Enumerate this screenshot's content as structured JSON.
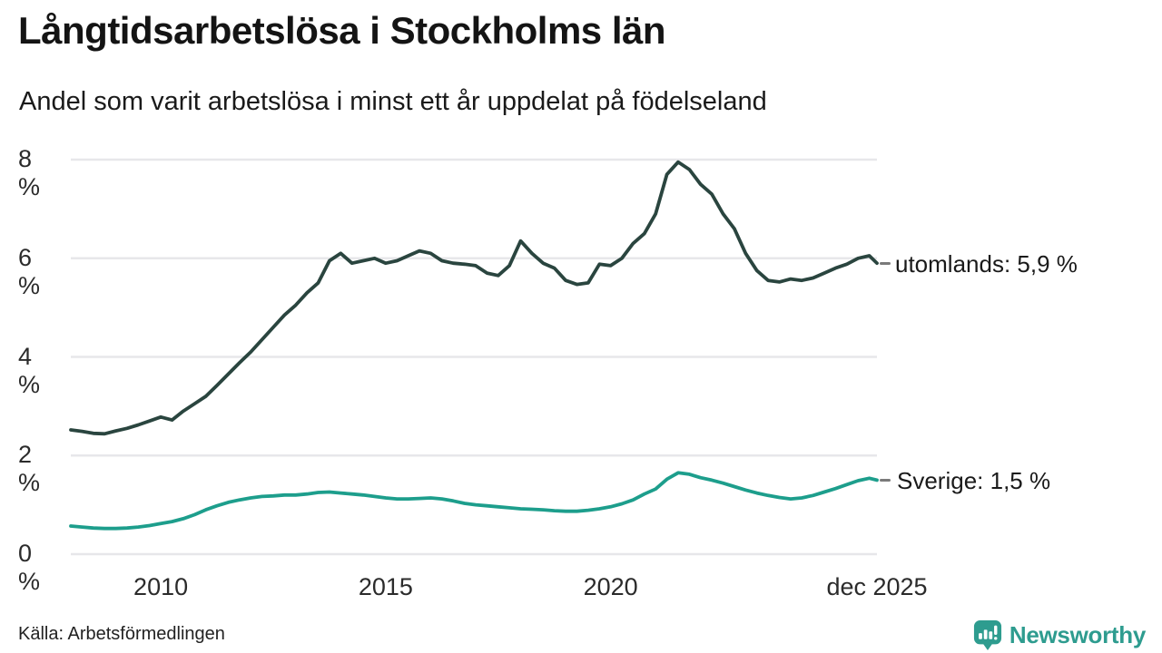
{
  "header": {
    "title": "Långtidsarbetslösa i Stockholms län",
    "subtitle": "Andel som varit arbetslösa i minst ett år uppdelat på födelseland"
  },
  "footer": {
    "source": "Källa: Arbetsförmedlingen",
    "brand": "Newsworthy"
  },
  "colors": {
    "utomlands_line": "#2a453f",
    "sverige_line": "#1d9e8c",
    "gridline": "#e7e7ea",
    "brand_teal": "#2E9C8F",
    "text": "#1a1a1a",
    "connector": "#7a7a7a"
  },
  "chart_data": {
    "type": "line",
    "title": "Långtidsarbetslösa i Stockholms län",
    "subtitle": "Andel som varit arbetslösa i minst ett år uppdelat på födelseland",
    "xlabel": "",
    "ylabel": "%",
    "ylim": [
      0,
      8.3
    ],
    "x_range_years": [
      2008,
      2025.92
    ],
    "grid": "horizontal",
    "legend_position": "right-end-labels",
    "y_axis": {
      "unit": "%",
      "ticks": [
        {
          "label": "0 %",
          "value": 0
        },
        {
          "label": "2 %",
          "value": 2
        },
        {
          "label": "4 %",
          "value": 4
        },
        {
          "label": "6 %",
          "value": 6
        },
        {
          "label": "8 %",
          "value": 8
        }
      ]
    },
    "x_axis": {
      "ticks": [
        {
          "label": "2010",
          "year": 2010
        },
        {
          "label": "2015",
          "year": 2015
        },
        {
          "label": "2020",
          "year": 2020
        },
        {
          "label": "dec 2025",
          "year": 2025.92
        }
      ]
    },
    "series": [
      {
        "name": "utomlands",
        "end_label": "utomlands: 5,9 %",
        "end_value_text": "5,9 %",
        "color": "#2a453f",
        "points": [
          [
            2008.0,
            2.52
          ],
          [
            2008.25,
            2.49
          ],
          [
            2008.5,
            2.45
          ],
          [
            2008.75,
            2.44
          ],
          [
            2009.0,
            2.5
          ],
          [
            2009.25,
            2.55
          ],
          [
            2009.5,
            2.62
          ],
          [
            2009.75,
            2.7
          ],
          [
            2010.0,
            2.78
          ],
          [
            2010.25,
            2.72
          ],
          [
            2010.5,
            2.9
          ],
          [
            2010.75,
            3.05
          ],
          [
            2011.0,
            3.2
          ],
          [
            2011.25,
            3.42
          ],
          [
            2011.5,
            3.65
          ],
          [
            2011.75,
            3.88
          ],
          [
            2012.0,
            4.1
          ],
          [
            2012.25,
            4.35
          ],
          [
            2012.5,
            4.6
          ],
          [
            2012.75,
            4.85
          ],
          [
            2013.0,
            5.05
          ],
          [
            2013.25,
            5.3
          ],
          [
            2013.5,
            5.5
          ],
          [
            2013.75,
            5.95
          ],
          [
            2014.0,
            6.1
          ],
          [
            2014.25,
            5.9
          ],
          [
            2014.5,
            5.95
          ],
          [
            2014.75,
            6.0
          ],
          [
            2015.0,
            5.9
          ],
          [
            2015.25,
            5.95
          ],
          [
            2015.5,
            6.05
          ],
          [
            2015.75,
            6.15
          ],
          [
            2016.0,
            6.1
          ],
          [
            2016.25,
            5.95
          ],
          [
            2016.5,
            5.9
          ],
          [
            2016.75,
            5.88
          ],
          [
            2017.0,
            5.85
          ],
          [
            2017.25,
            5.7
          ],
          [
            2017.5,
            5.65
          ],
          [
            2017.75,
            5.85
          ],
          [
            2018.0,
            6.35
          ],
          [
            2018.25,
            6.1
          ],
          [
            2018.5,
            5.9
          ],
          [
            2018.75,
            5.8
          ],
          [
            2019.0,
            5.55
          ],
          [
            2019.25,
            5.47
          ],
          [
            2019.5,
            5.5
          ],
          [
            2019.75,
            5.88
          ],
          [
            2020.0,
            5.85
          ],
          [
            2020.25,
            6.0
          ],
          [
            2020.5,
            6.3
          ],
          [
            2020.75,
            6.5
          ],
          [
            2021.0,
            6.9
          ],
          [
            2021.25,
            7.7
          ],
          [
            2021.5,
            7.95
          ],
          [
            2021.75,
            7.8
          ],
          [
            2022.0,
            7.5
          ],
          [
            2022.25,
            7.3
          ],
          [
            2022.5,
            6.9
          ],
          [
            2022.75,
            6.6
          ],
          [
            2023.0,
            6.1
          ],
          [
            2023.25,
            5.75
          ],
          [
            2023.5,
            5.55
          ],
          [
            2023.75,
            5.52
          ],
          [
            2024.0,
            5.58
          ],
          [
            2024.25,
            5.55
          ],
          [
            2024.5,
            5.6
          ],
          [
            2024.75,
            5.7
          ],
          [
            2025.0,
            5.8
          ],
          [
            2025.25,
            5.88
          ],
          [
            2025.5,
            6.0
          ],
          [
            2025.75,
            6.05
          ],
          [
            2025.92,
            5.9
          ]
        ]
      },
      {
        "name": "Sverige",
        "end_label": "Sverige: 1,5 %",
        "end_value_text": "1,5 %",
        "color": "#1d9e8c",
        "points": [
          [
            2008.0,
            0.57
          ],
          [
            2008.25,
            0.55
          ],
          [
            2008.5,
            0.53
          ],
          [
            2008.75,
            0.52
          ],
          [
            2009.0,
            0.52
          ],
          [
            2009.25,
            0.53
          ],
          [
            2009.5,
            0.55
          ],
          [
            2009.75,
            0.58
          ],
          [
            2010.0,
            0.62
          ],
          [
            2010.25,
            0.66
          ],
          [
            2010.5,
            0.72
          ],
          [
            2010.75,
            0.8
          ],
          [
            2011.0,
            0.9
          ],
          [
            2011.25,
            0.98
          ],
          [
            2011.5,
            1.05
          ],
          [
            2011.75,
            1.1
          ],
          [
            2012.0,
            1.14
          ],
          [
            2012.25,
            1.17
          ],
          [
            2012.5,
            1.18
          ],
          [
            2012.75,
            1.2
          ],
          [
            2013.0,
            1.2
          ],
          [
            2013.25,
            1.22
          ],
          [
            2013.5,
            1.25
          ],
          [
            2013.75,
            1.26
          ],
          [
            2014.0,
            1.24
          ],
          [
            2014.25,
            1.22
          ],
          [
            2014.5,
            1.2
          ],
          [
            2014.75,
            1.17
          ],
          [
            2015.0,
            1.14
          ],
          [
            2015.25,
            1.12
          ],
          [
            2015.5,
            1.12
          ],
          [
            2015.75,
            1.13
          ],
          [
            2016.0,
            1.14
          ],
          [
            2016.25,
            1.12
          ],
          [
            2016.5,
            1.08
          ],
          [
            2016.75,
            1.03
          ],
          [
            2017.0,
            1.0
          ],
          [
            2017.25,
            0.98
          ],
          [
            2017.5,
            0.96
          ],
          [
            2017.75,
            0.94
          ],
          [
            2018.0,
            0.92
          ],
          [
            2018.25,
            0.91
          ],
          [
            2018.5,
            0.9
          ],
          [
            2018.75,
            0.88
          ],
          [
            2019.0,
            0.87
          ],
          [
            2019.25,
            0.87
          ],
          [
            2019.5,
            0.89
          ],
          [
            2019.75,
            0.92
          ],
          [
            2020.0,
            0.96
          ],
          [
            2020.25,
            1.02
          ],
          [
            2020.5,
            1.1
          ],
          [
            2020.75,
            1.22
          ],
          [
            2021.0,
            1.32
          ],
          [
            2021.25,
            1.52
          ],
          [
            2021.5,
            1.65
          ],
          [
            2021.75,
            1.62
          ],
          [
            2022.0,
            1.55
          ],
          [
            2022.25,
            1.5
          ],
          [
            2022.5,
            1.44
          ],
          [
            2022.75,
            1.37
          ],
          [
            2023.0,
            1.3
          ],
          [
            2023.25,
            1.24
          ],
          [
            2023.5,
            1.19
          ],
          [
            2023.75,
            1.15
          ],
          [
            2024.0,
            1.12
          ],
          [
            2024.25,
            1.14
          ],
          [
            2024.5,
            1.19
          ],
          [
            2024.75,
            1.26
          ],
          [
            2025.0,
            1.33
          ],
          [
            2025.25,
            1.41
          ],
          [
            2025.5,
            1.49
          ],
          [
            2025.75,
            1.54
          ],
          [
            2025.92,
            1.5
          ]
        ]
      }
    ]
  }
}
